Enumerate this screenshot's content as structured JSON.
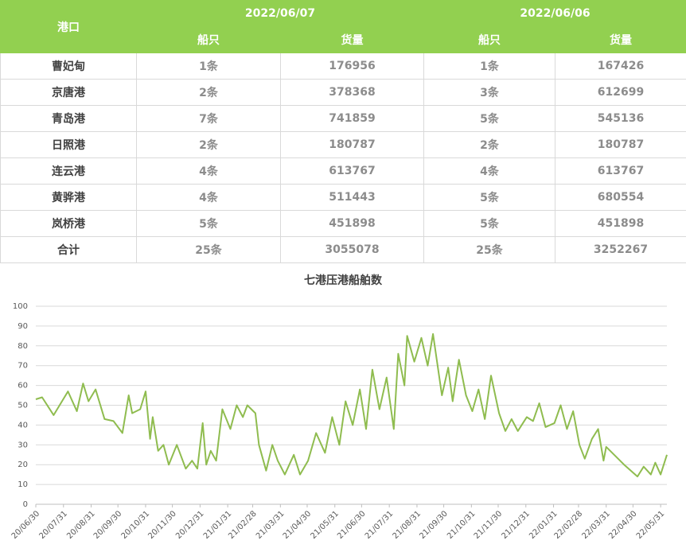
{
  "table": {
    "header": {
      "port": "港口",
      "groups": [
        {
          "date": "2022/06/07",
          "ships": "船只",
          "cargo": "货量"
        },
        {
          "date": "2022/06/06",
          "ships": "船只",
          "cargo": "货量"
        }
      ]
    },
    "rows": [
      [
        "曹妃甸",
        "1条",
        "176956",
        "1条",
        "167426"
      ],
      [
        "京唐港",
        "2条",
        "378368",
        "3条",
        "612699"
      ],
      [
        "青岛港",
        "7条",
        "741859",
        "5条",
        "545136"
      ],
      [
        "日照港",
        "2条",
        "180787",
        "2条",
        "180787"
      ],
      [
        "连云港",
        "4条",
        "613767",
        "4条",
        "613767"
      ],
      [
        "黄骅港",
        "4条",
        "511443",
        "5条",
        "680554"
      ],
      [
        "岚桥港",
        "5条",
        "451898",
        "5条",
        "451898"
      ],
      [
        "合计",
        "25条",
        "3055078",
        "25条",
        "3252267"
      ]
    ]
  },
  "chart_data": {
    "type": "line",
    "title": "七港压港船舶数",
    "color": "#8fbc4f",
    "grid": true,
    "ylim": [
      0,
      100
    ],
    "yticks": [
      0,
      10,
      20,
      30,
      40,
      50,
      60,
      70,
      80,
      90,
      100
    ],
    "xlim": [
      "20/06/30",
      "22/06/07"
    ],
    "xticks": [
      "20/06/30",
      "20/07/31",
      "20/08/31",
      "20/09/30",
      "20/10/31",
      "20/11/30",
      "20/12/31",
      "21/01/31",
      "21/02/28",
      "21/03/31",
      "21/04/30",
      "21/05/31",
      "21/06/30",
      "21/07/31",
      "21/08/31",
      "21/09/30",
      "21/10/31",
      "21/11/30",
      "21/12/31",
      "22/01/31",
      "22/02/28",
      "22/03/31",
      "22/04/30",
      "22/05/31"
    ],
    "x": [
      "20/06/30",
      "20/07/07",
      "20/07/20",
      "20/08/05",
      "20/08/15",
      "20/08/22",
      "20/08/28",
      "20/09/05",
      "20/09/15",
      "20/09/25",
      "20/10/05",
      "20/10/12",
      "20/10/16",
      "20/10/25",
      "20/10/31",
      "20/11/05",
      "20/11/08",
      "20/11/14",
      "20/11/20",
      "20/11/26",
      "20/12/05",
      "20/12/15",
      "20/12/22",
      "20/12/28",
      "21/01/03",
      "21/01/07",
      "21/01/12",
      "21/01/18",
      "21/01/25",
      "21/02/03",
      "21/02/10",
      "21/02/17",
      "21/02/22",
      "21/03/03",
      "21/03/07",
      "21/03/15",
      "21/03/22",
      "21/03/28",
      "21/04/05",
      "21/04/15",
      "21/04/22",
      "21/05/01",
      "21/05/10",
      "21/05/20",
      "21/05/28",
      "21/06/05",
      "21/06/12",
      "21/06/20",
      "21/06/28",
      "21/07/05",
      "21/07/12",
      "21/07/20",
      "21/07/28",
      "21/08/05",
      "21/08/10",
      "21/08/17",
      "21/08/20",
      "21/08/28",
      "21/09/05",
      "21/09/12",
      "21/09/18",
      "21/09/28",
      "21/10/05",
      "21/10/10",
      "21/10/17",
      "21/10/25",
      "21/11/01",
      "21/11/08",
      "21/11/15",
      "21/11/22",
      "21/12/01",
      "21/12/08",
      "21/12/15",
      "21/12/22",
      "22/01/01",
      "22/01/08",
      "22/01/15",
      "22/01/22",
      "22/02/01",
      "22/02/08",
      "22/02/15",
      "22/02/22",
      "22/03/01",
      "22/03/07",
      "22/03/15",
      "22/03/22",
      "22/03/28",
      "22/03/31",
      "22/04/20",
      "22/05/05",
      "22/05/12",
      "22/05/20",
      "22/05/25",
      "22/05/31",
      "22/06/07"
    ],
    "values": [
      53,
      54,
      45,
      57,
      47,
      61,
      52,
      58,
      43,
      42,
      36,
      55,
      46,
      48,
      57,
      33,
      44,
      27,
      30,
      20,
      30,
      18,
      22,
      18,
      41,
      20,
      27,
      22,
      48,
      38,
      50,
      44,
      50,
      46,
      30,
      17,
      30,
      22,
      15,
      25,
      15,
      22,
      36,
      26,
      44,
      30,
      52,
      40,
      58,
      38,
      68,
      48,
      64,
      38,
      76,
      60,
      85,
      72,
      84,
      70,
      86,
      55,
      69,
      52,
      73,
      55,
      47,
      58,
      43,
      65,
      46,
      37,
      43,
      37,
      44,
      42,
      51,
      39,
      41,
      50,
      38,
      47,
      30,
      23,
      33,
      38,
      22,
      29,
      20,
      14,
      19,
      15,
      21,
      15,
      25
    ]
  }
}
